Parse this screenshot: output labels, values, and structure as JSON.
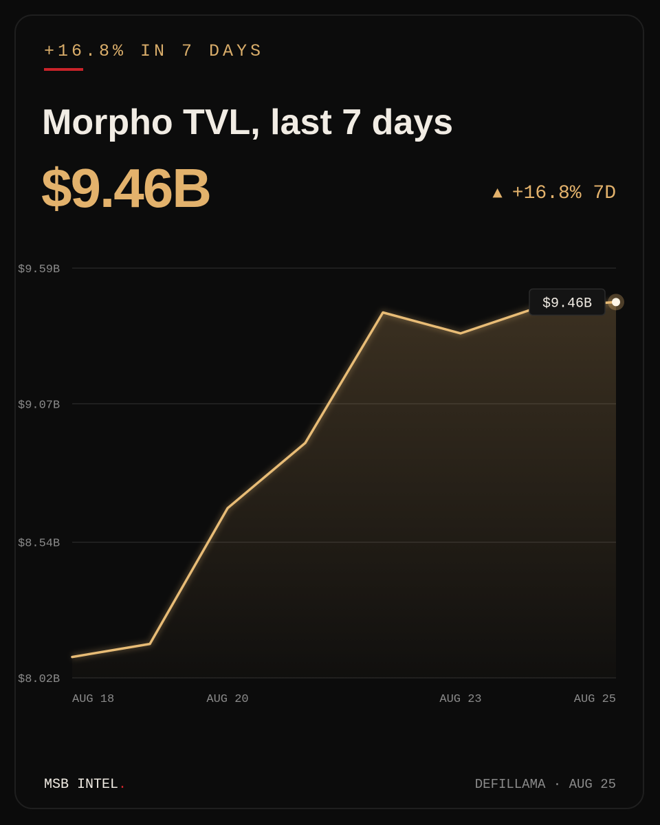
{
  "kicker": "+16.8% IN 7 DAYS",
  "title": "Morpho TVL, last 7 days",
  "current_value": "$9.46B",
  "change": {
    "arrow": "▲",
    "text": "+16.8% 7D"
  },
  "footer": {
    "brand": "MSB INTEL",
    "brand_dot": ".",
    "source": "DEFILLAMA · AUG 25"
  },
  "colors": {
    "background": "#0b0b0b",
    "accent": "#e3b26c",
    "line": "#e8bc76",
    "red_accent": "#c9232a",
    "grid": "#2a2a2a",
    "muted_text": "#8a8a8a"
  },
  "chart_data": {
    "type": "area",
    "x": [
      "AUG 18",
      "AUG 19",
      "AUG 20",
      "AUG 21",
      "AUG 22",
      "AUG 23",
      "AUG 24",
      "AUG 25"
    ],
    "series": [
      {
        "values": [
          8.1,
          8.15,
          8.67,
          8.92,
          9.42,
          9.34,
          9.44,
          9.46
        ]
      }
    ],
    "ylim": [
      8.02,
      9.59
    ],
    "y_ticks": [
      "$9.59B",
      "$9.07B",
      "$8.54B",
      "$8.02B"
    ],
    "y_tick_values": [
      9.59,
      9.07,
      8.54,
      8.02
    ],
    "x_ticks": [
      "AUG 18",
      "AUG 20",
      "AUG 23",
      "AUG 25"
    ],
    "last_point_label": "$9.46B",
    "grid": true,
    "legend": "none"
  }
}
